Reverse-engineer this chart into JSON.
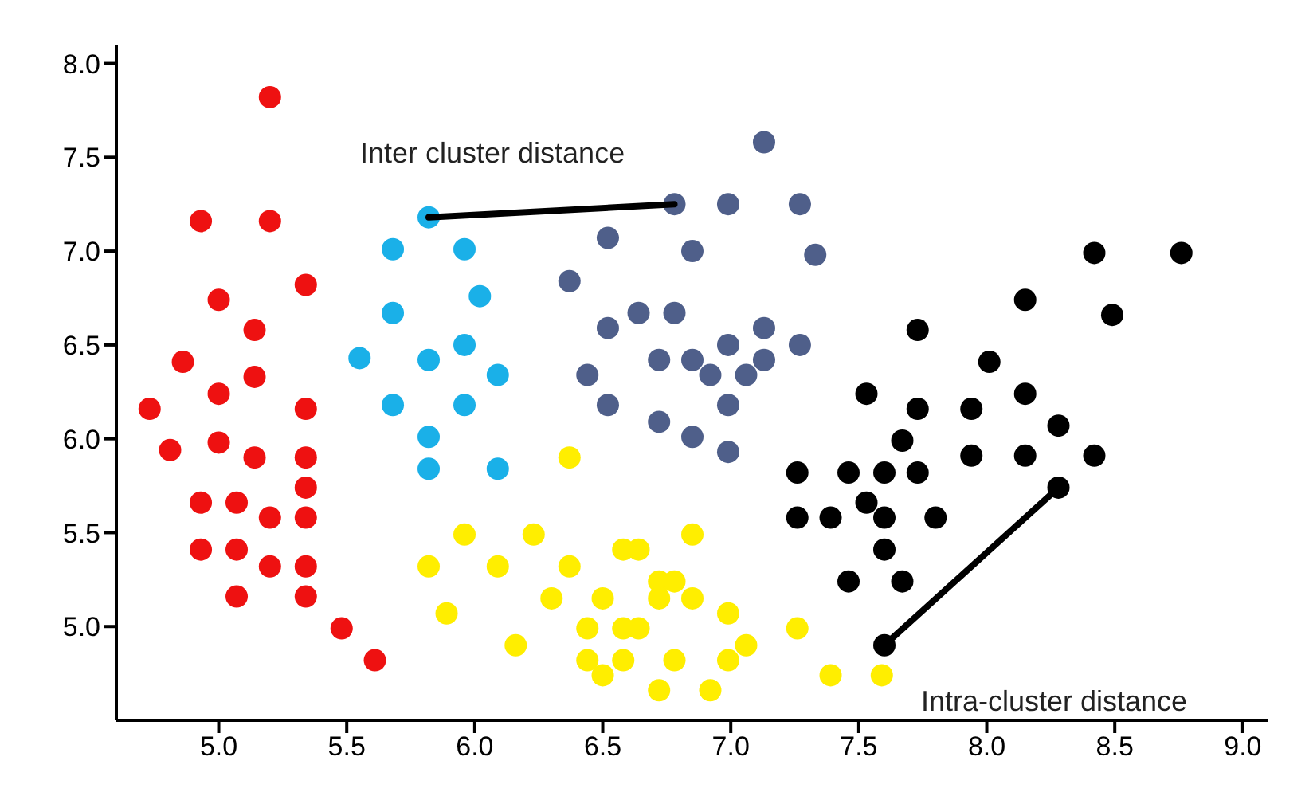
{
  "chart_data": {
    "type": "scatter",
    "marker": "circle",
    "xlim": [
      4.6,
      9.1
    ],
    "ylim": [
      4.5,
      8.1
    ],
    "xticks": [
      {
        "value": 5,
        "label": "5.0"
      },
      5.5,
      {
        "value": 6,
        "label": "6.0"
      },
      6.5,
      {
        "value": 7,
        "label": "7.0"
      },
      7.5,
      {
        "value": 8,
        "label": "8.0"
      },
      8.5,
      {
        "value": 9,
        "label": "9.0"
      }
    ],
    "yticks": [
      {
        "value": 5,
        "label": "5.0"
      },
      5.5,
      {
        "value": 6,
        "label": "6.0"
      },
      6.5,
      {
        "value": 7,
        "label": "7.0"
      },
      7.5,
      {
        "value": 8,
        "label": "8.0"
      }
    ],
    "annotations": [
      "Inter cluster distance",
      "Intra-cluster distance"
    ],
    "series": [
      {
        "color": "#ee1111",
        "x": [
          5.2,
          4.93,
          5.2,
          5.34,
          5.0,
          5.14,
          4.86,
          5.14,
          4.73,
          5.0,
          5.34,
          4.81,
          5.0,
          5.14,
          5.34,
          5.34,
          4.93,
          5.07,
          5.2,
          5.34,
          4.93,
          5.07,
          5.2,
          5.34,
          5.07,
          5.34,
          5.48,
          5.61
        ],
        "values": [
          7.82,
          7.16,
          7.16,
          6.82,
          6.74,
          6.58,
          6.41,
          6.33,
          6.16,
          6.24,
          6.16,
          5.94,
          5.98,
          5.9,
          5.9,
          5.74,
          5.66,
          5.66,
          5.58,
          5.58,
          5.41,
          5.41,
          5.32,
          5.32,
          5.16,
          5.16,
          4.99,
          4.82
        ]
      },
      {
        "color": "#1ab0e8",
        "x": [
          5.82,
          5.68,
          5.96,
          6.02,
          5.68,
          5.96,
          5.55,
          5.82,
          6.09,
          5.68,
          5.96,
          5.82,
          5.82,
          6.09
        ],
        "values": [
          7.18,
          7.01,
          7.01,
          6.76,
          6.67,
          6.5,
          6.43,
          6.42,
          6.34,
          6.18,
          6.18,
          6.01,
          5.84,
          5.84
        ]
      },
      {
        "color": "#4f5f8a",
        "x": [
          7.13,
          6.78,
          6.99,
          7.27,
          6.52,
          6.85,
          7.33,
          6.37,
          6.64,
          6.78,
          6.52,
          6.99,
          7.13,
          7.27,
          6.72,
          6.85,
          7.13,
          6.44,
          6.92,
          7.06,
          6.52,
          6.99,
          6.72,
          6.85,
          6.99
        ],
        "values": [
          7.58,
          7.25,
          7.25,
          7.25,
          7.07,
          7.0,
          6.98,
          6.84,
          6.67,
          6.67,
          6.59,
          6.5,
          6.59,
          6.5,
          6.42,
          6.42,
          6.42,
          6.34,
          6.34,
          6.34,
          6.18,
          6.18,
          6.09,
          6.01,
          5.93
        ]
      },
      {
        "color": "#ffee00",
        "x": [
          6.37,
          5.96,
          6.23,
          5.82,
          6.09,
          6.37,
          6.58,
          6.64,
          6.85,
          6.5,
          6.72,
          6.78,
          6.3,
          6.72,
          6.85,
          6.58,
          6.99,
          5.89,
          6.16,
          6.44,
          6.64,
          7.26,
          6.44,
          6.58,
          6.78,
          6.99,
          6.5,
          7.06,
          6.92,
          6.72,
          7.39,
          7.59
        ],
        "values": [
          5.9,
          5.49,
          5.49,
          5.32,
          5.32,
          5.32,
          5.41,
          5.41,
          5.49,
          5.15,
          5.24,
          5.24,
          5.15,
          5.15,
          5.15,
          4.99,
          5.07,
          5.07,
          4.9,
          4.99,
          4.99,
          4.99,
          4.82,
          4.82,
          4.82,
          4.82,
          4.74,
          4.9,
          4.66,
          4.66,
          4.74,
          4.74
        ]
      },
      {
        "color": "#000000",
        "x": [
          8.42,
          8.76,
          8.15,
          8.49,
          7.73,
          8.01,
          7.53,
          7.73,
          8.15,
          7.94,
          7.67,
          7.94,
          8.15,
          8.42,
          8.28,
          7.26,
          7.46,
          7.6,
          7.73,
          7.53,
          7.26,
          7.39,
          7.6,
          7.8,
          7.6,
          7.46,
          7.67,
          8.28,
          7.6
        ],
        "values": [
          6.99,
          6.99,
          6.74,
          6.66,
          6.58,
          6.41,
          6.24,
          6.16,
          6.24,
          6.16,
          5.99,
          5.91,
          5.91,
          5.91,
          6.07,
          5.82,
          5.82,
          5.82,
          5.82,
          5.66,
          5.58,
          5.58,
          5.58,
          5.58,
          5.41,
          5.24,
          5.24,
          5.74,
          4.9
        ]
      },
      {
        "type": "line",
        "marker": "none",
        "color": "#000000",
        "x": [
          5.82,
          6.78
        ],
        "values": [
          7.18,
          7.25
        ]
      },
      {
        "type": "line",
        "marker": "none",
        "color": "#000000",
        "x": [
          7.6,
          8.28
        ],
        "values": [
          4.9,
          5.74
        ]
      }
    ]
  }
}
